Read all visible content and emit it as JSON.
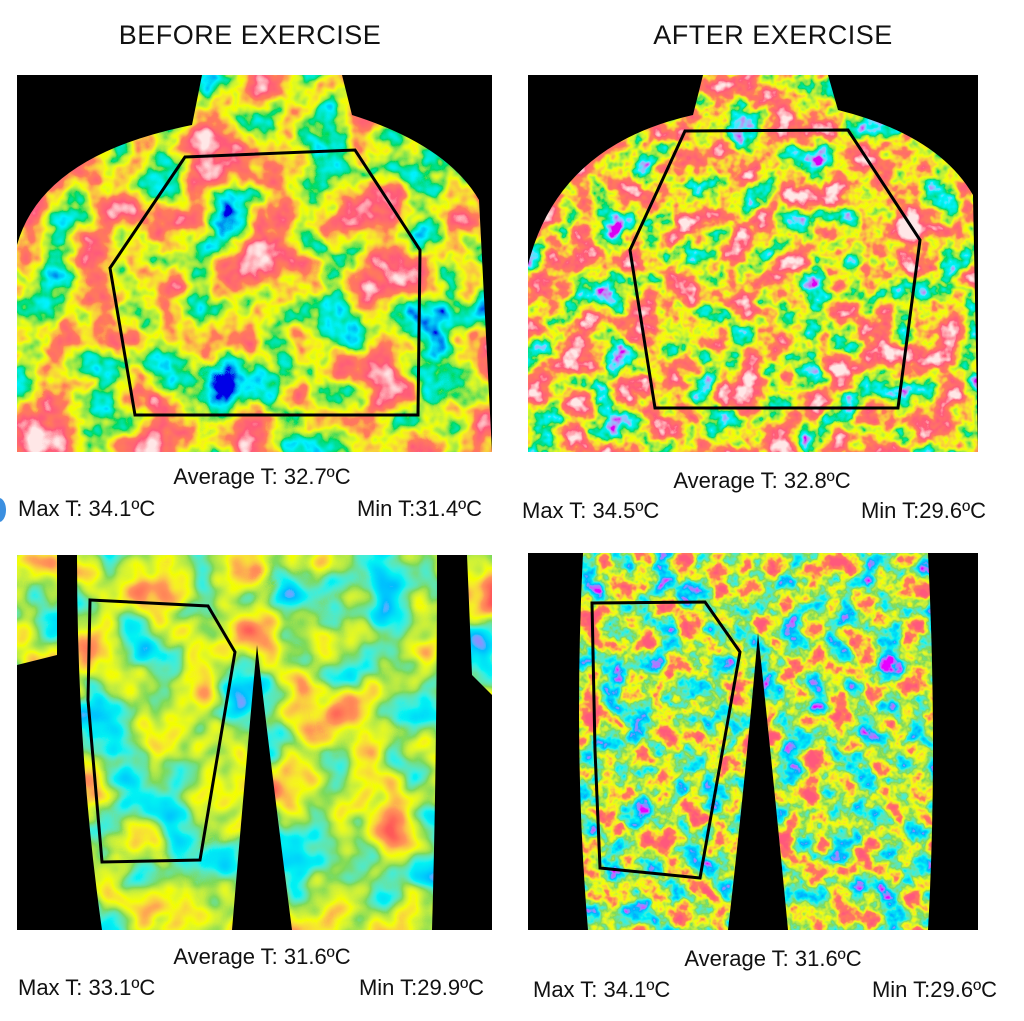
{
  "titles": {
    "before": "BEFORE EXERCISE",
    "after": "AFTER EXERCISE"
  },
  "panels": {
    "chest_before": {
      "average": "Average T: 32.7ºC",
      "max": "Max T: 34.1ºC",
      "min": "Min T:31.4ºC"
    },
    "chest_after": {
      "average": "Average T: 32.8ºC",
      "max": "Max T: 34.5ºC",
      "min": "Min T:29.6ºC"
    },
    "legs_before": {
      "average": "Average T: 31.6ºC",
      "max": "Max T: 33.1ºC",
      "min": "Min T:29.9ºC"
    },
    "legs_after": {
      "average": "Average T: 31.6ºC",
      "max": "Max T: 34.1ºC",
      "min": "Min T:29.6ºC"
    }
  },
  "colors": {
    "background": "#000000",
    "roi_outline": "#000000",
    "marker": "#3b8fe0"
  }
}
